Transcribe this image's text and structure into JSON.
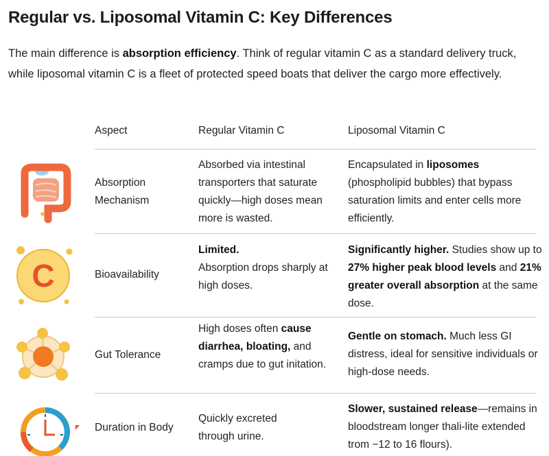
{
  "title": "Regular vs. Liposomal Vitamin C: Key Differences",
  "intro": {
    "pre": "The main difference is ",
    "bold": "absorption efficiency",
    "post": ". Think of regular vitamin C as a standard delivery truck, while liposomal vitamin C is a fleet of protected speed boats that deliver the cargo more effectively."
  },
  "table": {
    "headers": [
      "Aspect",
      "Regular Vitamin C",
      "Liposomal Vitamin C"
    ],
    "rows": [
      {
        "icon": "intestine-icon",
        "aspect": "Absorption Mechanism",
        "regular": [
          "Absorbed via intestinal transporters that saturate quickly—high doses mean more is wasted."
        ],
        "liposomal": [
          "Encapsulated in ",
          "liposomes",
          " (phospholipid bubbles) that bypass saturation limits and enter cells more efficiently."
        ]
      },
      {
        "icon": "vitamin-c-icon",
        "aspect": "Bioavailability",
        "regular": [
          "Limited.",
          "Absorption drops sharply at high doses."
        ],
        "liposomal": [
          "Significantly higher.",
          " Studies show up to ",
          "27% higher peak blood levels",
          " and ",
          "21% greater overall absorption",
          " at the same dose."
        ]
      },
      {
        "icon": "liposome-molecule-icon",
        "aspect": "Gut Tolerance",
        "regular": [
          "High doses often ",
          "cause diarrhea, bloating,",
          " and cramps due to gut initation."
        ],
        "liposomal": [
          "Gentle on stomach.",
          " Much less GI distress, ideal for sensitive individuals or high-dose needs."
        ]
      },
      {
        "icon": "clock-icon",
        "aspect": "Duration in Body",
        "regular": [
          "Quickly excreted through urine."
        ],
        "liposomal": [
          "Slower, sustained release",
          "—remains in bloodstream longer thali-lite extended trom −12 to 16 flours)."
        ]
      }
    ]
  },
  "colors": {
    "orange": "#e8643a",
    "yellow": "#f5c242",
    "blue": "#2a9fd0",
    "rule": "#c9c9c9"
  }
}
